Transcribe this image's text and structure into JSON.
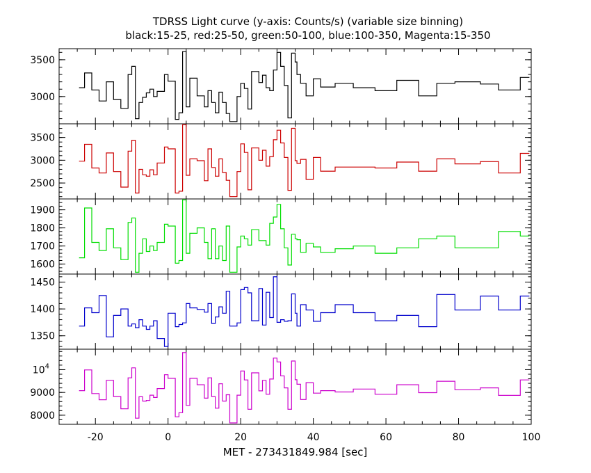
{
  "chart_data": {
    "type": "line",
    "title": "TDRSS Light curve (y-axis: Counts/s) (variable size binning)",
    "subtitle": "black:15-25, red:25-50, green:50-100, blue:100-350, Magenta:15-350",
    "xlabel": "MET - 273431849.984 [sec]",
    "xlim": [
      -30,
      100
    ],
    "x_ticks": [
      -20,
      0,
      20,
      40,
      60,
      80,
      100
    ],
    "x_edges": [
      -24.5,
      -23,
      -21,
      -19,
      -17,
      -15,
      -13,
      -11,
      -10,
      -9,
      -8,
      -7,
      -6,
      -5,
      -4,
      -3,
      -1,
      0,
      2,
      3,
      4,
      5,
      6,
      8,
      10,
      11,
      12,
      13,
      14,
      15,
      16,
      17,
      19,
      20,
      21,
      22,
      23,
      25,
      26,
      27,
      28,
      29,
      30,
      31,
      32,
      33,
      34,
      35,
      35.5,
      36.5,
      38,
      40,
      42,
      46,
      51,
      57,
      63,
      69,
      74,
      79,
      86,
      91,
      97,
      99.5
    ],
    "panels": [
      {
        "color": "#000000",
        "ylim": [
          2630,
          3650
        ],
        "y_ticks": [
          {
            "v": 3000,
            "t": "3000"
          },
          {
            "v": 3500,
            "t": "3500"
          }
        ],
        "values": [
          3120,
          3320,
          3090,
          2940,
          3200,
          2960,
          2840,
          3300,
          3410,
          2700,
          2920,
          2990,
          3050,
          3100,
          3000,
          3070,
          3300,
          3210,
          2690,
          2780,
          3610,
          2860,
          3250,
          3010,
          2860,
          3080,
          2920,
          2780,
          3060,
          2920,
          2770,
          2660,
          3000,
          3180,
          3110,
          2830,
          3340,
          3190,
          3290,
          3120,
          3080,
          3360,
          3600,
          3410,
          3150,
          2710,
          3590,
          3470,
          3300,
          3180,
          3010,
          3240,
          3130,
          3180,
          3120,
          3080,
          3220,
          3010,
          3180,
          3200,
          3170,
          3090,
          3260
        ]
      },
      {
        "color": "#cc0000",
        "ylim": [
          2150,
          3800
        ],
        "y_ticks": [
          {
            "v": 2500,
            "t": "2500"
          },
          {
            "v": 3000,
            "t": "3000"
          },
          {
            "v": 3500,
            "t": "3500"
          }
        ],
        "values": [
          2980,
          3350,
          2830,
          2720,
          3160,
          2750,
          2410,
          3200,
          3440,
          2280,
          2800,
          2680,
          2650,
          2790,
          2680,
          2940,
          3290,
          3250,
          2280,
          2320,
          3780,
          2670,
          3030,
          2990,
          2550,
          3250,
          2840,
          2650,
          3030,
          2730,
          2560,
          2200,
          2750,
          3360,
          3170,
          2350,
          3270,
          3000,
          3220,
          2870,
          3080,
          3450,
          3660,
          3380,
          3060,
          2340,
          3700,
          2990,
          2930,
          3020,
          2580,
          3060,
          2760,
          2850,
          2850,
          2830,
          2960,
          2760,
          3030,
          2920,
          2970,
          2720,
          3150
        ]
      },
      {
        "color": "#00dd00",
        "ylim": [
          1545,
          1960
        ],
        "y_ticks": [
          {
            "v": 1600,
            "t": "1600"
          },
          {
            "v": 1700,
            "t": "1700"
          },
          {
            "v": 1800,
            "t": "1800"
          },
          {
            "v": 1900,
            "t": "1900"
          }
        ],
        "values": [
          1635,
          1910,
          1720,
          1675,
          1795,
          1690,
          1625,
          1830,
          1855,
          1555,
          1660,
          1740,
          1670,
          1700,
          1675,
          1720,
          1820,
          1810,
          1605,
          1620,
          1955,
          1660,
          1770,
          1800,
          1720,
          1630,
          1795,
          1630,
          1700,
          1620,
          1810,
          1555,
          1695,
          1755,
          1740,
          1705,
          1790,
          1730,
          1730,
          1705,
          1825,
          1860,
          1930,
          1795,
          1690,
          1595,
          1765,
          1740,
          1735,
          1665,
          1715,
          1695,
          1665,
          1685,
          1700,
          1660,
          1690,
          1740,
          1755,
          1690,
          1690,
          1780,
          1755
        ]
      },
      {
        "color": "#0000cc",
        "ylim": [
          1325,
          1465
        ],
        "y_ticks": [
          {
            "v": 1350,
            "t": "1350"
          },
          {
            "v": 1400,
            "t": "1400"
          },
          {
            "v": 1450,
            "t": "1450"
          }
        ],
        "values": [
          1368,
          1402,
          1393,
          1425,
          1348,
          1388,
          1400,
          1368,
          1372,
          1365,
          1380,
          1368,
          1362,
          1368,
          1378,
          1345,
          1330,
          1392,
          1367,
          1371,
          1374,
          1410,
          1402,
          1399,
          1394,
          1410,
          1373,
          1385,
          1404,
          1392,
          1433,
          1368,
          1374,
          1436,
          1440,
          1430,
          1378,
          1438,
          1370,
          1431,
          1384,
          1460,
          1375,
          1380,
          1377,
          1378,
          1428,
          1392,
          1368,
          1408,
          1398,
          1377,
          1393,
          1408,
          1393,
          1378,
          1388,
          1367,
          1427,
          1398,
          1424,
          1398,
          1424
        ]
      },
      {
        "color": "#cc00cc",
        "ylim": [
          7600,
          10900
        ],
        "y_ticks": [
          {
            "v": 8000,
            "t": "8000"
          },
          {
            "v": 9000,
            "t": "9000"
          },
          {
            "v": 10000,
            "t": "10",
            "sup": "4"
          }
        ],
        "values": [
          9080,
          9990,
          8950,
          8680,
          9530,
          8820,
          8280,
          9640,
          10080,
          7870,
          8810,
          8620,
          8650,
          8880,
          8780,
          9170,
          9780,
          9620,
          7930,
          8110,
          10750,
          8430,
          9620,
          9340,
          8750,
          9640,
          8820,
          8310,
          9380,
          8620,
          8900,
          7660,
          8880,
          9940,
          9550,
          8260,
          9860,
          9070,
          9530,
          8920,
          9590,
          10510,
          10340,
          9730,
          9200,
          8260,
          10380,
          9560,
          9360,
          8690,
          9430,
          8970,
          9080,
          9020,
          9150,
          8920,
          9340,
          8990,
          9490,
          9120,
          9200,
          8870,
          9550
        ]
      }
    ]
  }
}
